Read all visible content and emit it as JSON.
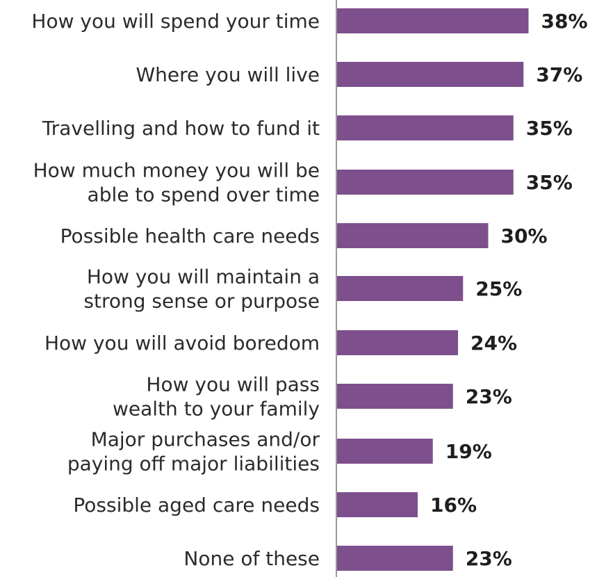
{
  "chart_data": {
    "type": "bar",
    "orientation": "horizontal",
    "categories": [
      [
        "How you will spend your time"
      ],
      [
        "Where you will live"
      ],
      [
        "Travelling and how to fund it"
      ],
      [
        "How much money you will be",
        "able to spend over time"
      ],
      [
        "Possible health care needs"
      ],
      [
        "How you will maintain a",
        "strong sense or purpose"
      ],
      [
        "How you will avoid boredom"
      ],
      [
        "How you will pass",
        "wealth to your family"
      ],
      [
        "Major purchases and/or",
        "paying off major liabilities"
      ],
      [
        "Possible aged care needs"
      ],
      [
        "None of these"
      ]
    ],
    "values": [
      38,
      37,
      35,
      35,
      30,
      25,
      24,
      23,
      19,
      16,
      23
    ],
    "value_labels": [
      "38%",
      "37%",
      "35%",
      "35%",
      "30%",
      "25%",
      "24%",
      "23%",
      "19%",
      "16%",
      "23%"
    ],
    "unit": "%",
    "xlim": [
      0,
      50
    ],
    "bar_color": "#7d4f8c",
    "axis_color": "#9a9a9a",
    "grid": false
  }
}
